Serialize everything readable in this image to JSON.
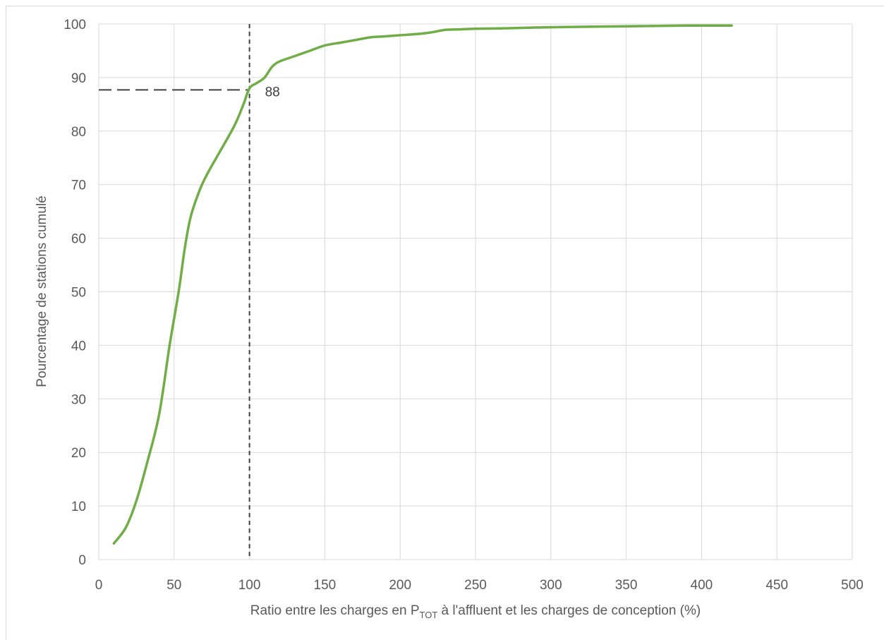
{
  "chart_data": {
    "type": "line",
    "title": "",
    "xlabel_parts": {
      "main": "Ratio entre les charges en P",
      "subscript": "TOT",
      "rest": " à l'affluent et les charges de conception (%)"
    },
    "ylabel": "Pourcentage de stations cumulé",
    "xlim": [
      0,
      500
    ],
    "ylim": [
      0,
      100
    ],
    "x_ticks": [
      0,
      50,
      100,
      150,
      200,
      250,
      300,
      350,
      400,
      450,
      500
    ],
    "y_ticks": [
      0,
      10,
      20,
      30,
      40,
      50,
      60,
      70,
      80,
      90,
      100
    ],
    "grid": true,
    "legend": "none",
    "series": [
      {
        "color": "#70ad47",
        "x": [
          10,
          18,
          25,
          32,
          40,
          47,
          53,
          57,
          61,
          67,
          72,
          80,
          90,
          96,
          100,
          105,
          110,
          115,
          120,
          130,
          140,
          150,
          160,
          170,
          180,
          190,
          200,
          210,
          220,
          230,
          240,
          250,
          270,
          300,
          330,
          360,
          390,
          420
        ],
        "y": [
          3,
          6,
          11,
          18,
          27,
          40,
          50,
          58,
          64,
          69,
          72,
          76,
          81,
          85,
          88,
          89,
          90,
          92,
          93,
          94,
          95,
          96,
          96.5,
          97,
          97.5,
          97.7,
          97.9,
          98.1,
          98.4,
          98.9,
          99.0,
          99.1,
          99.2,
          99.4,
          99.5,
          99.6,
          99.7,
          99.7
        ]
      }
    ],
    "reference": {
      "x": 100,
      "y": 87.7,
      "label": "88",
      "color": "#404040"
    }
  }
}
